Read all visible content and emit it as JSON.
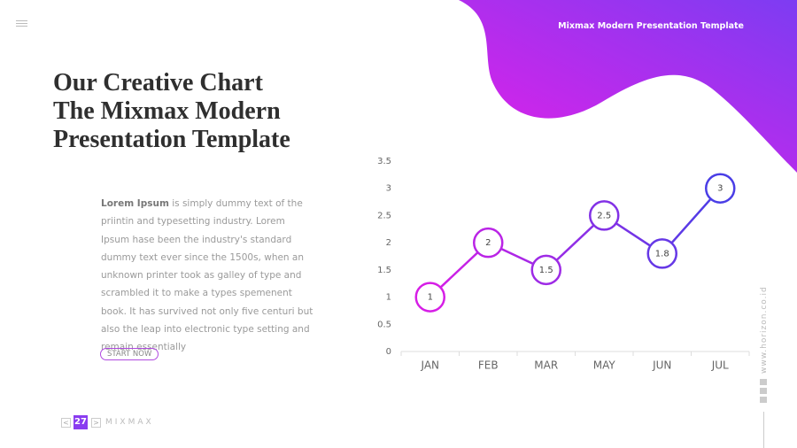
{
  "header": {
    "title": "Mixmax Modern Presentation Template"
  },
  "heading": [
    "Our Creative Chart",
    "The Mixmax Modern",
    "Presentation Template"
  ],
  "body": {
    "lead": "Lorem Ipsum",
    "text": " is simply dummy text of the priintin and typesetting industry. Lorem Ipsum hase been the industry's standard dummy text ever since the 1500s, when an unknown printer took as galley of type and scrambled it to make a types spemenent book. It has survived not only five centuri but also the leap into electronic type setting and remain essentially"
  },
  "button": "START NOW",
  "pager": {
    "prev": "<",
    "page": "27",
    "next": ">",
    "brand": "MIXMAX"
  },
  "website": "www.horizon.co.id",
  "chart_data": {
    "type": "line",
    "categories": [
      "JAN",
      "FEB",
      "MAR",
      "MAY",
      "JUN",
      "JUL"
    ],
    "values": [
      1,
      2,
      1.5,
      2.5,
      1.8,
      3
    ],
    "colors": [
      "#d61ee6",
      "#4a3ee6"
    ],
    "ylim": [
      0,
      3.5
    ],
    "yticks": [
      0,
      0.5,
      1,
      1.5,
      2,
      2.5,
      3,
      3.5
    ]
  }
}
